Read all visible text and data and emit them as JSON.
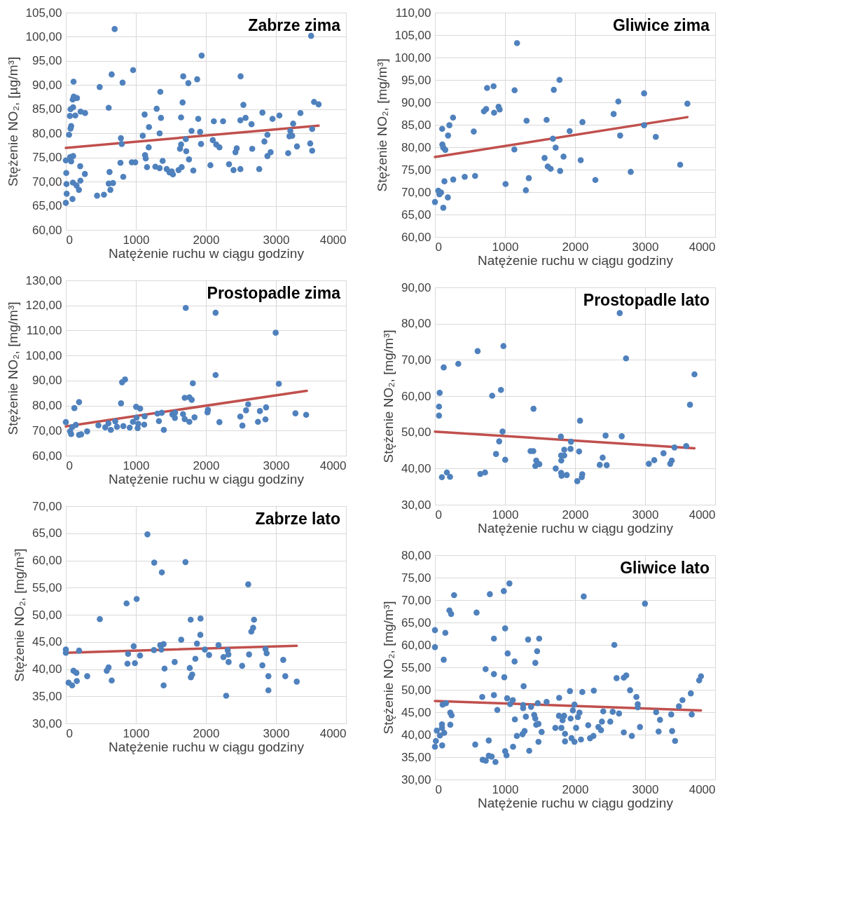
{
  "chart_data": [
    {
      "type": "scatter",
      "title": "Zabrze zima",
      "xlabel": "Natężenie ruchu w ciągu godziny",
      "ylabel": "Stężenie NO₂, [µg/m³]",
      "xlim": [
        0,
        4000
      ],
      "xticks": [
        0,
        1000,
        2000,
        3000,
        4000
      ],
      "ylim": [
        60,
        105
      ],
      "yticks": [
        {
          "value": 60,
          "label": "60,00"
        },
        {
          "value": 65,
          "label": "65,00"
        },
        {
          "value": 70,
          "label": "70,00"
        },
        {
          "value": 75,
          "label": "75,00"
        },
        {
          "value": 80,
          "label": "80,00"
        },
        {
          "value": 85,
          "label": "85,00"
        },
        {
          "value": 90,
          "label": "90,00"
        },
        {
          "value": 95,
          "label": "95,00"
        },
        {
          "value": 100,
          "label": "100,00"
        },
        {
          "value": 105,
          "label": "105,00"
        }
      ],
      "grid": true,
      "series": [
        {
          "type": "scatter",
          "marker": "circle",
          "color": "#4f81bd",
          "x": [
            697,
            3502,
            1939,
            110,
            654,
            960,
            810,
            483,
            1676,
            1749,
            1875,
            2495,
            1349,
            113,
            159,
            98,
            1667,
            3544,
            3609,
            2535,
            104,
            67,
            612,
            1297,
            211,
            275,
            58,
            135,
            1125,
            1358,
            1645,
            1890,
            2113,
            2245,
            2492,
            2566,
            2651,
            2807,
            2951,
            3049,
            3349,
            3245,
            76,
            67,
            1187,
            46,
            1098,
            1339,
            1795,
            1917,
            1713,
            3205,
            3193,
            3232,
            2878,
            3517,
            786,
            798,
            1645,
            1630,
            1719,
            1930,
            2098,
            2147,
            2193,
            2440,
            2422,
            2661,
            2835,
            2924,
            2878,
            3174,
            3300,
            3489,
            3517,
            1183,
            1131,
            1141,
            0,
            76,
            104,
            61,
            205,
            780,
            942,
            991,
            1382,
            1758,
            272,
            624,
            820,
            1159,
            1278,
            1339,
            1440,
            1480,
            1529,
            1511,
            1609,
            1654,
            1820,
            2064,
            2330,
            2394,
            2492,
            2761,
            6,
            9,
            101,
            208,
            153,
            187,
            612,
            673,
            636,
            12,
            95,
            0,
            446,
            544
          ],
          "values": [
            101.6,
            100.2,
            96.1,
            90.7,
            92.2,
            93.1,
            90.5,
            89.6,
            91.8,
            90.4,
            91.2,
            91.8,
            88.6,
            87.6,
            87.3,
            87.0,
            86.4,
            86.5,
            86.0,
            85.9,
            85.4,
            85.0,
            85.3,
            85.1,
            84.5,
            84.2,
            83.6,
            83.7,
            83.9,
            83.2,
            83.3,
            83.0,
            82.5,
            82.5,
            82.7,
            83.2,
            81.9,
            84.3,
            83.0,
            83.7,
            84.2,
            82.0,
            81.5,
            81.0,
            81.3,
            79.7,
            79.5,
            80.0,
            80.5,
            80.3,
            78.8,
            80.5,
            79.4,
            79.5,
            79.7,
            80.9,
            79.0,
            77.8,
            77.7,
            76.8,
            76.3,
            77.8,
            78.6,
            77.7,
            77.1,
            76.9,
            76.1,
            76.8,
            78.3,
            76.1,
            75.3,
            75.9,
            77.3,
            77.9,
            76.4,
            77.1,
            75.5,
            74.8,
            74.4,
            74.2,
            75.3,
            75.1,
            73.2,
            73.9,
            74.0,
            74.0,
            74.3,
            74.6,
            71.6,
            72.0,
            71.0,
            73.0,
            73.1,
            72.8,
            72.6,
            71.9,
            71.5,
            72.1,
            72.4,
            73.0,
            72.3,
            73.4,
            73.6,
            72.4,
            72.6,
            72.6,
            71.8,
            69.5,
            69.8,
            70.2,
            69.2,
            68.3,
            69.6,
            69.7,
            68.3,
            67.5,
            66.4,
            65.6,
            67.1,
            67.3
          ]
        },
        {
          "type": "line",
          "color": "#c0504d",
          "x": [
            0,
            3609
          ],
          "values": [
            77.0,
            81.6
          ]
        }
      ]
    },
    {
      "type": "scatter",
      "title": "Gliwice zima",
      "xlabel": "Natężenie ruchu w ciągu godziny",
      "ylabel": "Stężenie NO₂, [mg/m³]",
      "xlim": [
        0,
        4000
      ],
      "xticks": [
        0,
        1000,
        2000,
        3000,
        4000
      ],
      "ylim": [
        60,
        110
      ],
      "yticks": [
        {
          "value": 60,
          "label": "60,00"
        },
        {
          "value": 65,
          "label": "65,00"
        },
        {
          "value": 70,
          "label": "70,00"
        },
        {
          "value": 75,
          "label": "75,00"
        },
        {
          "value": 80,
          "label": "80,00"
        },
        {
          "value": 85,
          "label": "85,00"
        },
        {
          "value": 90,
          "label": "90,00"
        },
        {
          "value": 95,
          "label": "95,00"
        },
        {
          "value": 100,
          "label": "100,00"
        },
        {
          "value": 105,
          "label": "105,00"
        },
        {
          "value": 110,
          "label": "110,00"
        }
      ],
      "grid": true,
      "series": [
        {
          "type": "scatter",
          "marker": "circle",
          "color": "#4f81bd",
          "x": [
            1172,
            1778,
            744,
            837,
            1137,
            1697,
            2986,
            2618,
            3604,
            699,
            731,
            908,
            924,
            844,
            2551,
            258,
            206,
            103,
            187,
            554,
            1308,
            1594,
            2106,
            2986,
            1923,
            1684,
            2644,
            3153,
            106,
            119,
            148,
            1134,
            1723,
            1565,
            1836,
            2081,
            1610,
            1652,
            1787,
            2795,
            3501,
            135,
            261,
            425,
            573,
            1008,
            1340,
            2290,
            1298,
            48,
            87,
            64,
            184,
            0,
            119
          ],
          "values": [
            103.2,
            95.0,
            93.2,
            93.6,
            92.7,
            92.8,
            92.0,
            90.2,
            89.7,
            88.0,
            88.5,
            89.0,
            88.4,
            87.7,
            87.4,
            86.6,
            84.9,
            84.1,
            82.6,
            83.5,
            85.9,
            86.1,
            85.6,
            84.9,
            83.6,
            81.9,
            82.6,
            82.3,
            80.6,
            79.9,
            79.4,
            79.5,
            79.9,
            77.6,
            77.9,
            77.1,
            75.7,
            75.2,
            74.7,
            74.5,
            76.1,
            72.4,
            72.8,
            73.4,
            73.6,
            71.8,
            73.1,
            72.7,
            70.4,
            70.3,
            69.9,
            69.5,
            68.8,
            67.8,
            66.5
          ]
        },
        {
          "type": "line",
          "color": "#c0504d",
          "x": [
            0,
            3604
          ],
          "values": [
            77.8,
            86.7
          ]
        }
      ]
    },
    {
      "type": "scatter",
      "title": "Prostopadle zima",
      "xlabel": "Natężenie ruchu w ciągu godziny",
      "ylabel": "Stężenie NO₂, [mg/m³]",
      "xlim": [
        0,
        4000
      ],
      "xticks": [
        0,
        1000,
        2000,
        3000,
        4000
      ],
      "ylim": [
        60,
        130
      ],
      "yticks": [
        {
          "value": 60,
          "label": "60,00"
        },
        {
          "value": 70,
          "label": "70,00"
        },
        {
          "value": 80,
          "label": "80,00"
        },
        {
          "value": 90,
          "label": "90,00"
        },
        {
          "value": 100,
          "label": "100,00"
        },
        {
          "value": 110,
          "label": "110,00"
        },
        {
          "value": 120,
          "label": "120,00"
        },
        {
          "value": 130,
          "label": "130,00"
        }
      ],
      "grid": true,
      "series": [
        {
          "type": "scatter",
          "marker": "circle",
          "color": "#4f81bd",
          "x": [
            1712,
            2138,
            2996,
            2138,
            803,
            845,
            1813,
            3041,
            189,
            122,
            788,
            1697,
            1764,
            1797,
            1004,
            1061,
            2603,
            2573,
            2771,
            2859,
            3278,
            3431,
            0,
            143,
            91,
            61,
            76,
            189,
            219,
            304,
            465,
            563,
            608,
            642,
            706,
            730,
            821,
            912,
            958,
            1010,
            1025,
            1034,
            1125,
            1119,
            1308,
            1369,
            1329,
            1399,
            1521,
            1560,
            1557,
            1673,
            1697,
            1764,
            1837,
            2022,
            2029,
            2193,
            2491,
            2521,
            2743,
            2850
          ],
          "values": [
            119.0,
            117.1,
            109.1,
            92.2,
            89.3,
            90.4,
            88.9,
            88.7,
            81.4,
            79.0,
            80.9,
            83.1,
            83.3,
            82.3,
            79.5,
            78.8,
            80.5,
            78.1,
            77.8,
            79.3,
            76.9,
            76.3,
            73.4,
            72.3,
            71.4,
            69.7,
            68.6,
            68.3,
            68.5,
            69.7,
            72.1,
            71.3,
            72.9,
            70.3,
            73.7,
            71.5,
            71.8,
            71.2,
            73.5,
            75.2,
            71.0,
            72.7,
            75.7,
            72.4,
            76.8,
            77.1,
            73.8,
            70.3,
            76.5,
            77.2,
            75.1,
            76.6,
            74.6,
            73.5,
            75.3,
            77.3,
            78.3,
            73.4,
            75.6,
            72.0,
            73.5,
            74.5
          ]
        },
        {
          "type": "line",
          "color": "#c0504d",
          "x": [
            0,
            3440
          ],
          "values": [
            71.7,
            85.9
          ]
        }
      ]
    },
    {
      "type": "scatter",
      "title": "Prostopadle lato",
      "xlabel": "Natężenie ruchu w ciągu godziny",
      "ylabel": "Stężenie NO₂, [mg/m³]",
      "xlim": [
        0,
        4000
      ],
      "xticks": [
        0,
        1000,
        2000,
        3000,
        4000
      ],
      "ylim": [
        30,
        90
      ],
      "yticks": [
        {
          "value": 30,
          "label": "30,00"
        },
        {
          "value": 40,
          "label": "40,00"
        },
        {
          "value": 50,
          "label": "50,00"
        },
        {
          "value": 60,
          "label": "60,00"
        },
        {
          "value": 70,
          "label": "70,00"
        },
        {
          "value": 80,
          "label": "80,00"
        },
        {
          "value": 90,
          "label": "90,00"
        }
      ],
      "grid": true,
      "series": [
        {
          "type": "scatter",
          "marker": "circle",
          "color": "#4f81bd",
          "x": [
            2638,
            978,
            609,
            2728,
            333,
            125,
            3705,
            67,
            942,
            817,
            58,
            58,
            3641,
            1407,
            2071,
            965,
            917,
            872,
            1003,
            1798,
            1942,
            1846,
            1936,
            1801,
            1846,
            1804,
            2058,
            2436,
            2667,
            1365,
            1404,
            1446,
            1433,
            1490,
            1724,
            1801,
            1808,
            1881,
            2032,
            2096,
            2103,
            2394,
            2353,
            2452,
            3054,
            3131,
            3263,
            3359,
            3381,
            3420,
            3587,
            99,
            170,
            215,
            647,
            715
          ],
          "values": [
            82.9,
            73.8,
            72.4,
            70.4,
            68.9,
            67.9,
            66.0,
            60.9,
            61.7,
            60.1,
            57.1,
            54.6,
            57.6,
            56.5,
            53.2,
            50.2,
            47.5,
            44.0,
            42.4,
            48.8,
            47.4,
            45.2,
            45.4,
            43.6,
            43.6,
            42.2,
            44.7,
            49.1,
            48.9,
            44.8,
            44.8,
            42.2,
            40.7,
            41.2,
            40.0,
            38.8,
            38.0,
            38.2,
            36.5,
            37.6,
            38.4,
            43.0,
            41.0,
            40.9,
            41.3,
            42.3,
            44.2,
            41.3,
            42.2,
            45.8,
            46.2,
            37.6,
            38.9,
            37.7,
            38.5,
            38.9
          ]
        },
        {
          "type": "line",
          "color": "#c0504d",
          "x": [
            0,
            3705
          ],
          "values": [
            50.2,
            45.6
          ]
        }
      ]
    },
    {
      "type": "scatter",
      "title": "Zabrze lato",
      "xlabel": "Natężenie ruchu w ciągu godziny",
      "ylabel": "Stężenie NO₂, [mg/m³]",
      "xlim": [
        0,
        4000
      ],
      "xticks": [
        0,
        1000,
        2000,
        3000,
        4000
      ],
      "ylim": [
        30,
        70
      ],
      "yticks": [
        {
          "value": 30,
          "label": "30,00"
        },
        {
          "value": 35,
          "label": "35,00"
        },
        {
          "value": 40,
          "label": "40,00"
        },
        {
          "value": 45,
          "label": "45,00"
        },
        {
          "value": 50,
          "label": "50,00"
        },
        {
          "value": 55,
          "label": "55,00"
        },
        {
          "value": 60,
          "label": "60,00"
        },
        {
          "value": 65,
          "label": "65,00"
        },
        {
          "value": 70,
          "label": "70,00"
        }
      ],
      "grid": true,
      "series": [
        {
          "type": "scatter",
          "marker": "circle",
          "color": "#4f81bd",
          "x": [
            1165,
            1262,
            1708,
            1371,
            2604,
            1011,
            867,
            485,
            1782,
            1923,
            2687,
            2674,
            2648,
            1920,
            1647,
            1872,
            1396,
            1348,
            969,
            2180,
            0,
            0,
            189,
            1258,
            1364,
            1984,
            2311,
            2851,
            2867,
            889,
            1059,
            2045,
            2250,
            2321,
            2616,
            3104,
            880,
            986,
            1554,
            1849,
            2324,
            2517,
            2806,
            610,
            584,
            109,
            151,
            1409,
            1769,
            305,
            1804,
            1785,
            2892,
            3133,
            39,
            90,
            157,
            655,
            1396,
            3297,
            2892,
            2289
          ],
          "values": [
            64.8,
            59.6,
            59.7,
            57.8,
            55.6,
            52.9,
            52.1,
            49.2,
            49.1,
            49.3,
            49.1,
            47.6,
            46.9,
            46.3,
            45.4,
            44.7,
            44.6,
            44.4,
            44.2,
            44.4,
            43.6,
            43.0,
            43.4,
            43.5,
            43.6,
            43.6,
            43.5,
            43.7,
            42.9,
            42.8,
            42.5,
            42.6,
            42.2,
            42.7,
            42.7,
            41.7,
            41.0,
            41.1,
            41.3,
            41.9,
            41.3,
            40.6,
            40.7,
            40.3,
            39.7,
            39.7,
            39.3,
            40.1,
            40.2,
            38.7,
            39.0,
            38.5,
            38.7,
            38.7,
            37.5,
            37.0,
            37.8,
            37.9,
            37.0,
            37.7,
            36.1,
            35.1
          ]
        },
        {
          "type": "line",
          "color": "#c0504d",
          "x": [
            0,
            3297
          ],
          "values": [
            43.0,
            44.3
          ]
        }
      ]
    },
    {
      "type": "scatter",
      "title": "Gliwice lato",
      "xlabel": "Natężenie ruchu w ciągu godziny",
      "ylabel": "Stężenie NO₂, [mg/m³]",
      "xlim": [
        0,
        4000
      ],
      "xticks": [
        0,
        1000,
        2000,
        3000,
        4000
      ],
      "ylim": [
        30,
        80
      ],
      "yticks": [
        {
          "value": 30,
          "label": "30,00"
        },
        {
          "value": 35,
          "label": "35,00"
        },
        {
          "value": 40,
          "label": "40,00"
        },
        {
          "value": 45,
          "label": "45,00"
        },
        {
          "value": 50,
          "label": "50,00"
        },
        {
          "value": 55,
          "label": "55,00"
        },
        {
          "value": 60,
          "label": "60,00"
        },
        {
          "value": 65,
          "label": "65,00"
        },
        {
          "value": 70,
          "label": "70,00"
        },
        {
          "value": 75,
          "label": "75,00"
        },
        {
          "value": 80,
          "label": "80,00"
        }
      ],
      "grid": true,
      "series": [
        {
          "type": "scatter",
          "marker": "circle",
          "color": "#4f81bd",
          "x": [
            1063,
            983,
            784,
            273,
            2124,
            2998,
            206,
            231,
            594,
            0,
            148,
            1002,
            842,
            1330,
            1488,
            0,
            2561,
            1038,
            1459,
            125,
            1137,
            1433,
            723,
            842,
            990,
            2593,
            2696,
            2731,
            3772,
            3798,
            1266,
            675,
            842,
            1031,
            1112,
            1073,
            1259,
            1259,
            1372,
            1468,
            1594,
            1773,
            1927,
            2104,
            2268,
            1992,
            1969,
            2063,
            2040,
            2786,
            2876,
            2895,
            2895,
            3653,
            3534,
            3483,
            109,
            157,
            219,
            238,
            890,
            2403,
            2538,
            2628,
            3158,
            3373,
            3666,
            1298,
            1417,
            1433,
            1770,
            1844,
            1822,
            1937,
            3213,
            1141,
            2503,
            2384,
            2188,
            2333,
            2371,
            1446,
            1478,
            1719,
            1805,
            2015,
            2927,
            219,
            100,
            100,
            26,
            132,
            71,
            1523,
            1857,
            2696,
            3193,
            3386,
            1279,
            1169,
            1250,
            2262,
            2214,
            2811,
            13,
            0,
            103,
            575,
            768,
            1478,
            1857,
            1950,
            1992,
            2085,
            3428,
            1115,
            1346,
            1002,
            1022,
            681,
            726,
            768,
            810,
            864
          ],
          "values": [
            73.7,
            72.0,
            71.3,
            71.1,
            70.8,
            69.2,
            67.7,
            66.9,
            67.2,
            63.3,
            62.7,
            63.7,
            61.4,
            61.2,
            61.4,
            59.5,
            60.0,
            58.1,
            58.6,
            56.7,
            56.3,
            56.0,
            54.6,
            53.5,
            52.8,
            52.6,
            52.7,
            53.2,
            52.1,
            53.0,
            50.8,
            48.4,
            48.8,
            48.1,
            47.7,
            46.8,
            46.6,
            45.9,
            46.2,
            47.0,
            47.3,
            48.2,
            49.7,
            49.5,
            49.8,
            46.7,
            45.4,
            44.9,
            43.9,
            49.9,
            48.4,
            46.8,
            46.1,
            49.2,
            47.7,
            46.3,
            46.7,
            47.0,
            44.9,
            44.3,
            45.5,
            45.2,
            45.1,
            44.7,
            45.0,
            44.5,
            44.5,
            44.0,
            44.4,
            43.6,
            44.2,
            44.2,
            43.2,
            43.6,
            43.3,
            43.4,
            42.9,
            42.9,
            42.1,
            41.7,
            41.0,
            42.2,
            42.4,
            41.5,
            41.5,
            41.5,
            41.7,
            42.2,
            42.3,
            41.5,
            40.9,
            40.4,
            39.8,
            40.6,
            40.2,
            40.5,
            40.7,
            40.8,
            40.8,
            39.7,
            40.1,
            39.7,
            39.2,
            39.7,
            38.6,
            37.3,
            37.6,
            37.8,
            38.7,
            38.4,
            38.5,
            39.2,
            38.4,
            38.9,
            38.6,
            37.3,
            36.4,
            36.3,
            35.4,
            34.4,
            34.2,
            35.3,
            35.1,
            33.9
          ]
        },
        {
          "type": "line",
          "color": "#c0504d",
          "x": [
            0,
            3798
          ],
          "values": [
            47.5,
            45.4
          ]
        }
      ]
    }
  ]
}
